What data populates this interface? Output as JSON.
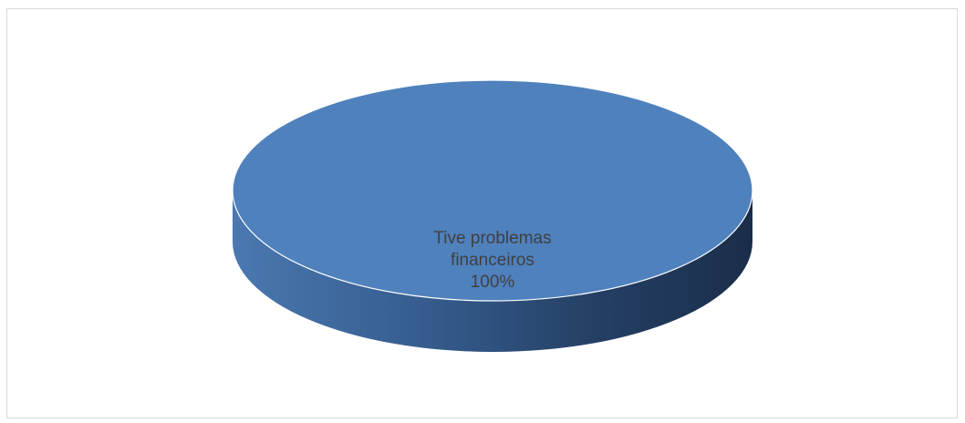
{
  "chart_data": {
    "type": "pie",
    "style": "3d",
    "title": "",
    "slices": [
      {
        "label": "Tive problemas financeiros",
        "label_lines": [
          "Tive problemas",
          "financeiros"
        ],
        "value": 100,
        "percent_label": "100%",
        "color": "#4f81bd"
      }
    ],
    "legend": "none"
  }
}
